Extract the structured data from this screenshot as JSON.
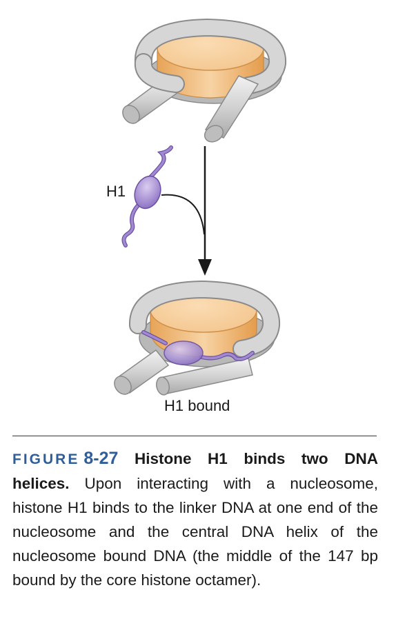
{
  "labels": {
    "h1": "H1",
    "h1_bound": "H1 bound"
  },
  "caption": {
    "figure_word": "FIGURE",
    "figure_number": "8-27",
    "title": "Histone H1 binds two DNA helices.",
    "body": "Upon interacting with a nucle­osome, histone H1 binds to the linker DNA at one end of the nucleosome and the central DNA helix of the nucleosome bound DNA (the middle of the 147 bp bound by the core histone octamer)."
  },
  "colors": {
    "dna_gray": "#c9c9c9",
    "dna_outline": "#7f7f7f",
    "core_top": "#f6cf9c",
    "core_side": "#e9a85d",
    "histone_h1": "#9f86cf",
    "h1_outline": "#6a4fa3",
    "caption_blue": "#2f5f9a"
  }
}
